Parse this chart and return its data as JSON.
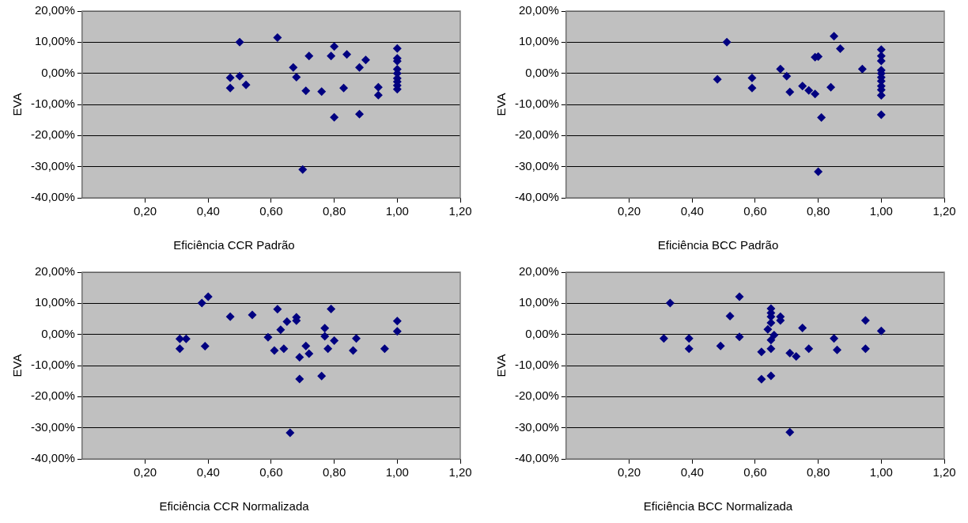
{
  "chart_data": [
    {
      "type": "scatter",
      "xlabel": "Eficiência CCR Padrão",
      "ylabel": "EVA",
      "marker": "diamond",
      "grid": "y",
      "xlim": [
        0,
        1.2
      ],
      "ylim": [
        -40,
        20
      ],
      "xticks": [
        {
          "value": 0.2,
          "label": "0,20"
        },
        {
          "value": 0.4,
          "label": "0,40"
        },
        {
          "value": 0.6,
          "label": "0,60"
        },
        {
          "value": 0.8,
          "label": "0,80"
        },
        {
          "value": 1.0,
          "label": "1,00"
        },
        {
          "value": 1.2,
          "label": "1,20"
        }
      ],
      "yticks": [
        {
          "value": -40,
          "label": "-40,00%"
        },
        {
          "value": -30,
          "label": "-30,00%"
        },
        {
          "value": -20,
          "label": "-20,00%"
        },
        {
          "value": -10,
          "label": "-10,00%"
        },
        {
          "value": 0,
          "label": "0,00%"
        },
        {
          "value": 10,
          "label": "10,00%"
        },
        {
          "value": 20,
          "label": "20,00%"
        }
      ],
      "series": [
        {
          "color": "#000080",
          "x": [
            0.5,
            0.62,
            0.47,
            0.5,
            0.47,
            0.52,
            0.67,
            0.68,
            0.72,
            0.71,
            0.7,
            0.76,
            0.8,
            0.79,
            0.8,
            0.84,
            0.83,
            0.88,
            0.88,
            0.9,
            0.94,
            0.94,
            1.0,
            1.0,
            1.0,
            1.0,
            1.0,
            1.0,
            1.0,
            1.0,
            1.0
          ],
          "values": [
            10.0,
            11.5,
            -1.4,
            -0.9,
            -4.7,
            -3.7,
            1.9,
            -1.2,
            5.6,
            -5.6,
            -30.9,
            -5.9,
            8.6,
            5.6,
            -14.1,
            6.1,
            -4.7,
            1.9,
            -13.1,
            4.3,
            -4.5,
            -7.0,
            8.0,
            4.8,
            3.9,
            1.3,
            0,
            -1.6,
            -2.7,
            -3.9,
            -5.1
          ]
        }
      ]
    },
    {
      "type": "scatter",
      "xlabel": "Eficiência BCC Padrão",
      "ylabel": "EVA",
      "marker": "diamond",
      "grid": "y",
      "xlim": [
        0,
        1.2
      ],
      "ylim": [
        -40,
        20
      ],
      "xticks": [
        {
          "value": 0.2,
          "label": "0,20"
        },
        {
          "value": 0.4,
          "label": "0,40"
        },
        {
          "value": 0.6,
          "label": "0,60"
        },
        {
          "value": 0.8,
          "label": "0,80"
        },
        {
          "value": 1.0,
          "label": "1,00"
        },
        {
          "value": 1.2,
          "label": "1,20"
        }
      ],
      "yticks": [
        {
          "value": -40,
          "label": "-40,00%"
        },
        {
          "value": -30,
          "label": "-30,00%"
        },
        {
          "value": -20,
          "label": "-20,00%"
        },
        {
          "value": -10,
          "label": "-10,00%"
        },
        {
          "value": 0,
          "label": "0,00%"
        },
        {
          "value": 10,
          "label": "10,00%"
        },
        {
          "value": 20,
          "label": "20,00%"
        }
      ],
      "series": [
        {
          "color": "#000080",
          "x": [
            0.51,
            0.48,
            0.59,
            0.59,
            0.68,
            0.7,
            0.71,
            0.75,
            0.77,
            0.79,
            0.79,
            0.8,
            0.8,
            0.81,
            0.84,
            0.85,
            0.87,
            0.94,
            1.0,
            1.0,
            1.0,
            1.0,
            1.0,
            1.0,
            1.0,
            1.0,
            1.0,
            1.0,
            1.0
          ],
          "values": [
            10.0,
            -1.9,
            -1.5,
            -4.7,
            1.4,
            -0.9,
            -6.0,
            -4.1,
            -5.5,
            -6.6,
            5.2,
            5.4,
            -31.6,
            -14.2,
            -4.5,
            11.9,
            7.9,
            1.4,
            7.6,
            5.6,
            4.0,
            1.0,
            0,
            -1.3,
            -2.5,
            -4.1,
            -5.3,
            -7.1,
            -13.3
          ]
        }
      ]
    },
    {
      "type": "scatter",
      "xlabel": "Eficiência CCR Normalizada",
      "ylabel": "EVA",
      "marker": "diamond",
      "grid": "y",
      "xlim": [
        0,
        1.2
      ],
      "ylim": [
        -40,
        20
      ],
      "xticks": [
        {
          "value": 0.2,
          "label": "0,20"
        },
        {
          "value": 0.4,
          "label": "0,40"
        },
        {
          "value": 0.6,
          "label": "0,60"
        },
        {
          "value": 0.8,
          "label": "0,80"
        },
        {
          "value": 1.0,
          "label": "1,00"
        },
        {
          "value": 1.2,
          "label": "1,20"
        }
      ],
      "yticks": [
        {
          "value": -40,
          "label": "-40,00%"
        },
        {
          "value": -30,
          "label": "-30,00%"
        },
        {
          "value": -20,
          "label": "-20,00%"
        },
        {
          "value": -10,
          "label": "-10,00%"
        },
        {
          "value": 0,
          "label": "0,00%"
        },
        {
          "value": 10,
          "label": "10,00%"
        },
        {
          "value": 20,
          "label": "20,00%"
        }
      ],
      "series": [
        {
          "color": "#000080",
          "x": [
            0.31,
            0.33,
            0.31,
            0.38,
            0.4,
            0.39,
            0.47,
            0.54,
            0.59,
            0.62,
            0.61,
            0.64,
            0.63,
            0.65,
            0.68,
            0.68,
            0.69,
            0.69,
            0.71,
            0.72,
            0.66,
            0.76,
            0.77,
            0.77,
            0.79,
            0.78,
            0.8,
            0.87,
            0.86,
            0.96,
            1.0,
            1.0
          ],
          "values": [
            -1.4,
            -1.4,
            -4.6,
            10.1,
            12.1,
            -3.8,
            5.7,
            6.3,
            -0.9,
            8.1,
            -5.2,
            -4.6,
            1.5,
            4.1,
            5.5,
            4.4,
            -7.3,
            -14.3,
            -3.7,
            -6.2,
            -31.6,
            -13.4,
            2.0,
            -0.6,
            8.2,
            -4.6,
            -2.0,
            -1.3,
            -5.2,
            -4.6,
            4.3,
            1.0
          ]
        }
      ]
    },
    {
      "type": "scatter",
      "xlabel": "Eficiência BCC Normalizada",
      "ylabel": "EVA",
      "marker": "diamond",
      "grid": "y",
      "xlim": [
        0,
        1.2
      ],
      "ylim": [
        -40,
        20
      ],
      "xticks": [
        {
          "value": 0.2,
          "label": "0,20"
        },
        {
          "value": 0.4,
          "label": "0,40"
        },
        {
          "value": 0.6,
          "label": "0,60"
        },
        {
          "value": 0.8,
          "label": "0,80"
        },
        {
          "value": 1.0,
          "label": "1,00"
        },
        {
          "value": 1.2,
          "label": "1,20"
        }
      ],
      "yticks": [
        {
          "value": -40,
          "label": "-40,00%"
        },
        {
          "value": -30,
          "label": "-30,00%"
        },
        {
          "value": -20,
          "label": "-20,00%"
        },
        {
          "value": -10,
          "label": "-10,00%"
        },
        {
          "value": 0,
          "label": "0,00%"
        },
        {
          "value": 10,
          "label": "10,00%"
        },
        {
          "value": 20,
          "label": "20,00%"
        }
      ],
      "series": [
        {
          "color": "#000080",
          "x": [
            0.31,
            0.33,
            0.39,
            0.39,
            0.49,
            0.52,
            0.55,
            0.55,
            0.62,
            0.64,
            0.62,
            0.65,
            0.65,
            0.65,
            0.65,
            0.65,
            0.65,
            0.65,
            0.66,
            0.68,
            0.68,
            0.71,
            0.73,
            0.71,
            0.75,
            0.77,
            0.85,
            0.86,
            0.95,
            0.95,
            1.0
          ],
          "values": [
            -1.3,
            10.1,
            -1.3,
            -4.6,
            -3.7,
            5.9,
            12.1,
            -0.8,
            -5.6,
            1.6,
            -14.4,
            8.3,
            6.9,
            5.7,
            3.7,
            -1.8,
            -4.6,
            -13.3,
            -0.2,
            5.7,
            4.5,
            -6.0,
            -7.1,
            -31.4,
            2.1,
            -4.6,
            -1.3,
            -5.0,
            -4.6,
            4.5,
            1.1
          ]
        }
      ]
    }
  ]
}
